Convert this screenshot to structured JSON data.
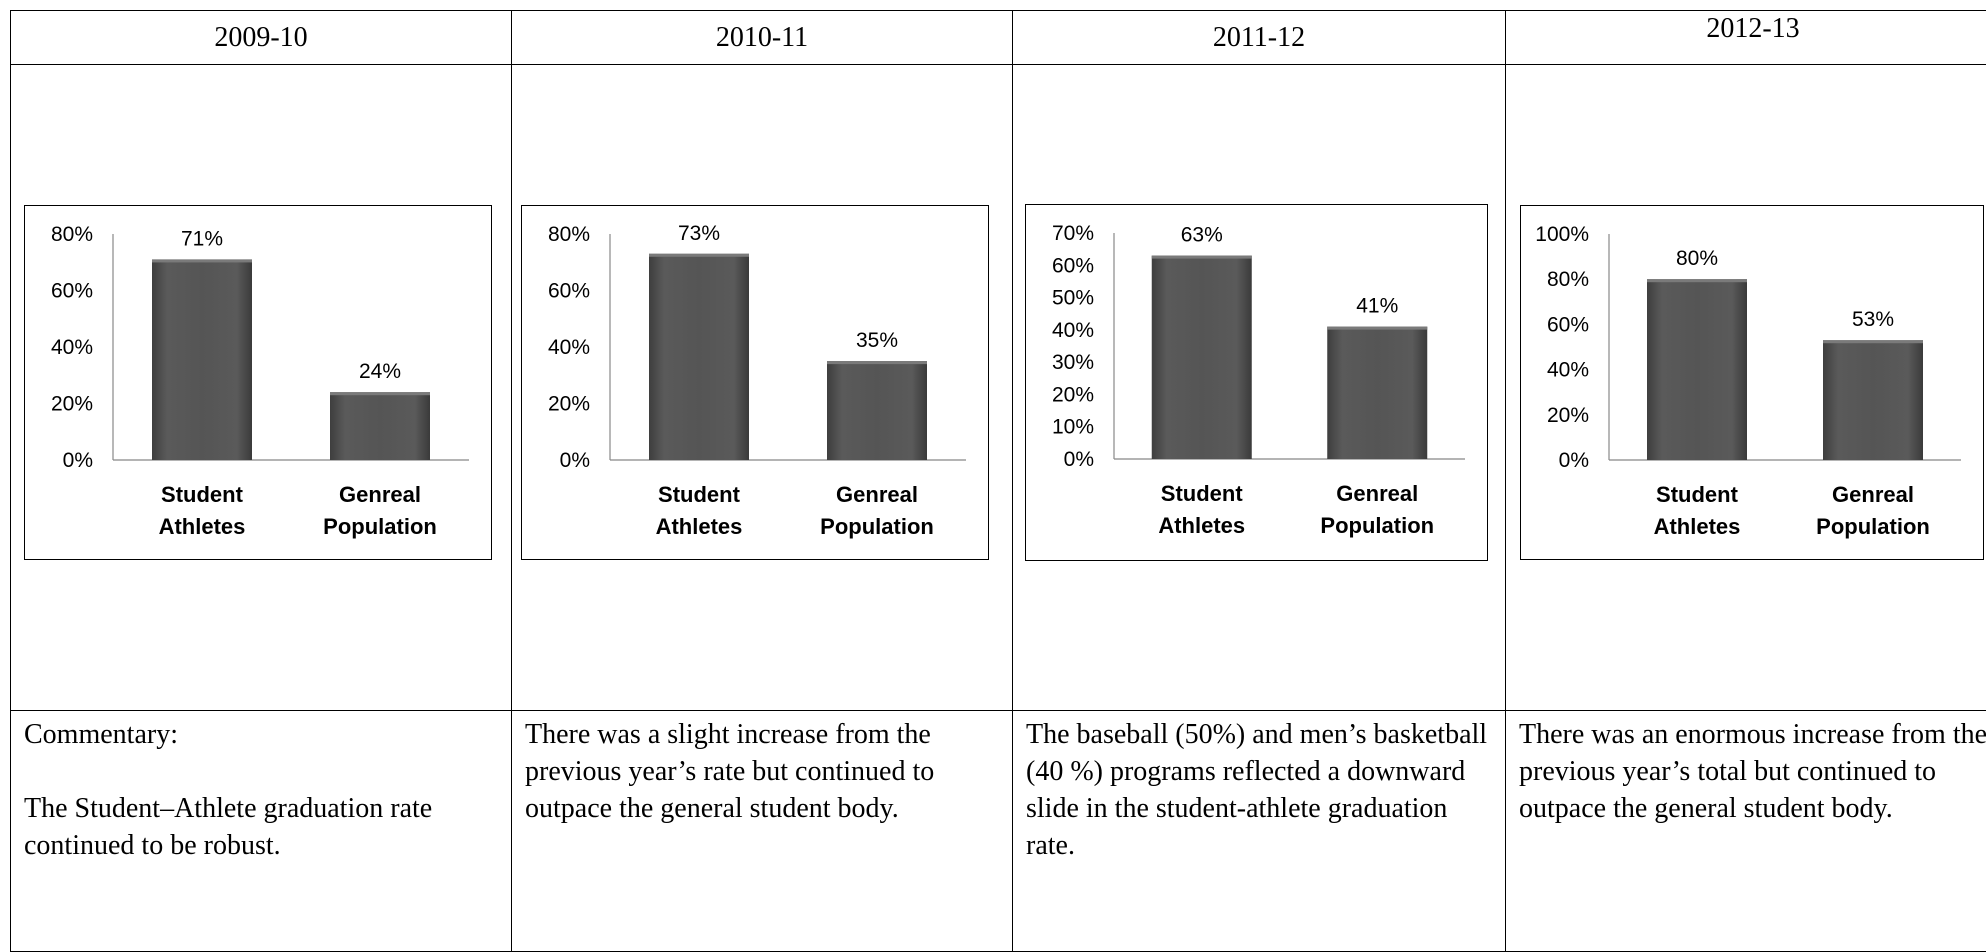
{
  "headers": [
    "2009-10",
    "2010-11",
    "2011-12",
    "2012-13"
  ],
  "chart_data": [
    {
      "type": "bar",
      "title": "2009-10",
      "categories": [
        [
          "Student",
          "Athletes"
        ],
        [
          "Genreal",
          "Population"
        ]
      ],
      "values": [
        71,
        24
      ],
      "data_labels": [
        "71%",
        "24%"
      ],
      "ylim": [
        0,
        80
      ],
      "yticks": [
        "0%",
        "20%",
        "40%",
        "60%",
        "80%"
      ],
      "bar_color": "#555555"
    },
    {
      "type": "bar",
      "title": "2010-11",
      "categories": [
        [
          "Student",
          "Athletes"
        ],
        [
          "Genreal",
          "Population"
        ]
      ],
      "values": [
        73,
        35
      ],
      "data_labels": [
        "73%",
        "35%"
      ],
      "ylim": [
        0,
        80
      ],
      "yticks": [
        "0%",
        "20%",
        "40%",
        "60%",
        "80%"
      ],
      "bar_color": "#555555"
    },
    {
      "type": "bar",
      "title": "2011-12",
      "categories": [
        [
          "Student",
          "Athletes"
        ],
        [
          "Genreal",
          "Population"
        ]
      ],
      "values": [
        63,
        41
      ],
      "data_labels": [
        "63%",
        "41%"
      ],
      "ylim": [
        0,
        70
      ],
      "yticks": [
        "0%",
        "10%",
        "20%",
        "30%",
        "40%",
        "50%",
        "60%",
        "70%"
      ],
      "bar_color": "#555555"
    },
    {
      "type": "bar",
      "title": "2012-13",
      "categories": [
        [
          "Student",
          "Athletes"
        ],
        [
          "Genreal",
          "Population"
        ]
      ],
      "values": [
        80,
        53
      ],
      "data_labels": [
        "80%",
        "53%"
      ],
      "ylim": [
        0,
        100
      ],
      "yticks": [
        "0%",
        "20%",
        "40%",
        "60%",
        "80%",
        "100%"
      ],
      "bar_color": "#555555"
    }
  ],
  "commentary": [
    [
      "Commentary:",
      "The Student–Athlete graduation rate continued to be robust."
    ],
    [
      "There was a slight increase from the previous year’s rate but continued to outpace the general student body."
    ],
    [
      "The baseball (50%) and men’s basketball (40 %) programs reflected a downward slide in the student-athlete graduation rate."
    ],
    [
      "There was an enormous increase from the previous year’s total but continued to outpace the general student body."
    ]
  ]
}
